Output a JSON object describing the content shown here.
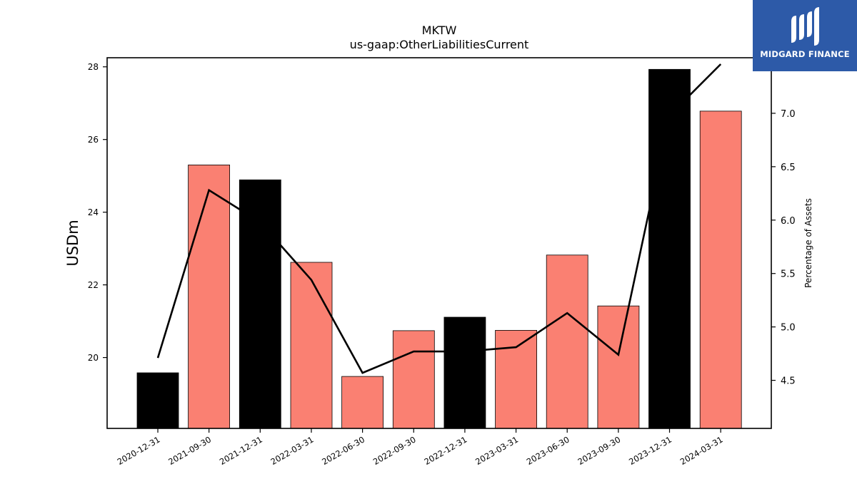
{
  "brand": {
    "name": "MIDGARD FINANCE",
    "logo_icon": "midgard-m-logo-icon",
    "background_color": "#2d5aa8"
  },
  "chart_data": {
    "type": "bar",
    "title": "MKTW",
    "subtitle": "us-gaap:OtherLiabilitiesCurrent",
    "xlabel": "",
    "ylabel": "USDm",
    "y2label": "Percentage of Assets",
    "categories": [
      "2020-12-31",
      "2021-09-30",
      "2021-12-31",
      "2022-03-31",
      "2022-06-30",
      "2022-09-30",
      "2022-12-31",
      "2023-03-31",
      "2023-06-30",
      "2023-09-30",
      "2023-12-31",
      "2024-03-31"
    ],
    "series": [
      {
        "type": "bar",
        "axis": "left",
        "values": [
          19.58,
          25.3,
          24.89,
          22.62,
          19.48,
          20.74,
          21.11,
          20.75,
          22.82,
          21.42,
          27.93,
          26.78
        ],
        "colors": [
          "#000000",
          "#fa8072",
          "#000000",
          "#fa8072",
          "#fa8072",
          "#fa8072",
          "#000000",
          "#fa8072",
          "#fa8072",
          "#fa8072",
          "#000000",
          "#fa8072"
        ]
      },
      {
        "type": "line",
        "axis": "right",
        "color": "#000000",
        "values": [
          4.71,
          6.28,
          5.98,
          5.44,
          4.57,
          4.77,
          4.77,
          4.81,
          5.13,
          4.74,
          6.98,
          7.46
        ]
      }
    ],
    "ylim": [
      18.05,
      28.25
    ],
    "y2lim": [
      4.05,
      7.52
    ],
    "yticks": [
      20,
      22,
      24,
      26,
      28
    ],
    "y2ticks": [
      "4.5",
      "5.0",
      "5.5",
      "6.0",
      "6.5",
      "7.0"
    ],
    "grid": false,
    "legend": "none"
  }
}
